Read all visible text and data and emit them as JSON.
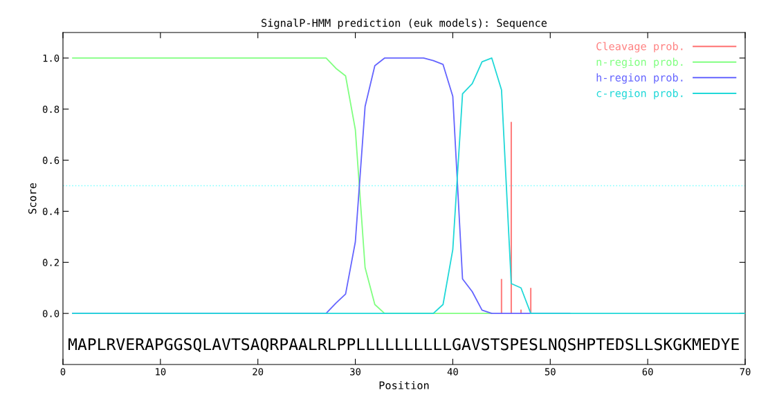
{
  "chart_data": {
    "type": "line",
    "title": "SignalP-HMM prediction (euk models): Sequence",
    "xlabel": "Position",
    "ylabel": "Score",
    "xlim": [
      0,
      70
    ],
    "xticks": [
      0,
      10,
      20,
      30,
      40,
      50,
      60,
      70
    ],
    "ylim": [
      -0.2,
      1.1
    ],
    "yticks": [
      {
        "value": 0,
        "label": "0.0"
      },
      0.2,
      0.4,
      0.6,
      0.8,
      {
        "value": 1,
        "label": "1.0"
      }
    ],
    "grid": false,
    "legend": "top right",
    "marker": "none",
    "line_style": "solid",
    "ref_lines": [
      {
        "axis": "y",
        "value": 0.5,
        "color": "#80ffff",
        "line_style": "dotted"
      }
    ],
    "annotations": [
      "MAPLRVERAPGGSQLAVTSAQRPAALRLPPLLLLLLLLLLGAVSTSPESLNQSHPTEDSLLSKGKMEDYE"
    ],
    "series": [
      {
        "name": "Cleavage prob.",
        "type": "bar",
        "color": "#ff8080",
        "x": [
          45,
          46,
          47,
          48
        ],
        "values": [
          0.135,
          0.75,
          0.015,
          0.1
        ]
      },
      {
        "name": "n-region prob.",
        "color": "#80ff80",
        "x": [
          1,
          27,
          28,
          29,
          30,
          31,
          32,
          33,
          44
        ],
        "values": [
          1,
          1,
          0.96,
          0.93,
          0.72,
          0.18,
          0.035,
          0,
          0
        ]
      },
      {
        "name": "h-region prob.",
        "color": "#6464ff",
        "x": [
          1,
          27,
          28,
          29,
          30,
          31,
          32,
          33,
          37,
          38,
          39,
          40,
          41,
          42,
          43,
          44,
          52
        ],
        "values": [
          0,
          0,
          0.04,
          0.076,
          0.28,
          0.81,
          0.97,
          1,
          1,
          0.99,
          0.975,
          0.85,
          0.135,
          0.085,
          0.013,
          0,
          0
        ]
      },
      {
        "name": "c-region prob.",
        "color": "#20d8d8",
        "x": [
          1,
          38,
          39,
          40,
          41,
          42,
          43,
          44,
          45,
          46,
          47,
          48,
          70
        ],
        "values": [
          0,
          0,
          0.035,
          0.25,
          0.86,
          0.9,
          0.985,
          1,
          0.875,
          0.117,
          0.1,
          0,
          0
        ]
      }
    ]
  }
}
